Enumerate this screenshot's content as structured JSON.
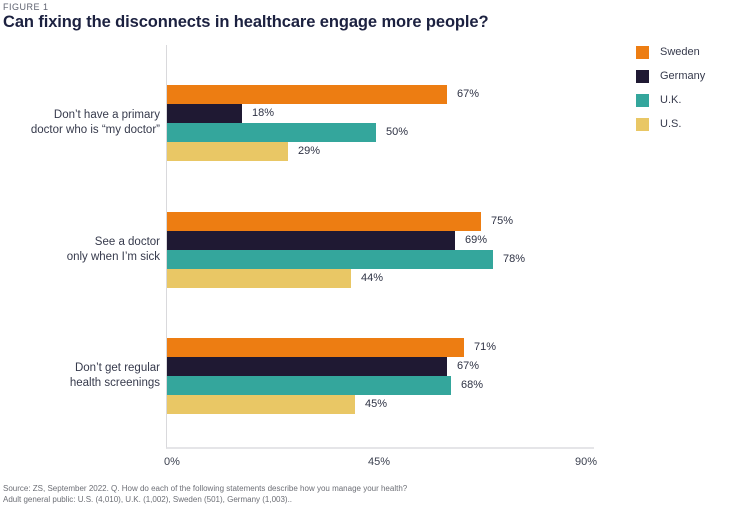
{
  "figure_label": "FIGURE 1",
  "chart_data": {
    "type": "bar",
    "orientation": "horizontal",
    "title": "Can fixing the disconnects in healthcare engage more people?",
    "categories": [
      "Don’t have a primary\ndoctor who is “my doctor”",
      "See a doctor\nonly when I’m sick",
      "Don’t get regular\nhealth screenings"
    ],
    "series": [
      {
        "name": "Sweden",
        "color": "#ED7D12",
        "values": [
          67,
          75,
          71
        ]
      },
      {
        "name": "Germany",
        "color": "#1F1933",
        "values": [
          18,
          69,
          67
        ]
      },
      {
        "name": "U.K.",
        "color": "#34A69C",
        "values": [
          50,
          78,
          68
        ]
      },
      {
        "name": "U.S.",
        "color": "#E9C765",
        "values": [
          29,
          44,
          45
        ]
      }
    ],
    "value_suffix": "%",
    "xlabel": "",
    "ylabel": "",
    "xlim": [
      0,
      90
    ],
    "x_ticks": [
      "0%",
      "45%",
      "90%"
    ],
    "grid": false,
    "legend_position": "top-right"
  },
  "source": {
    "line1": "Source: ZS, September 2022. Q. How do each of the following statements describe how you manage your health?",
    "line2": "Adult general public: U.S. (4,010), U.K. (1,002), Sweden (501), Germany (1,003).."
  }
}
